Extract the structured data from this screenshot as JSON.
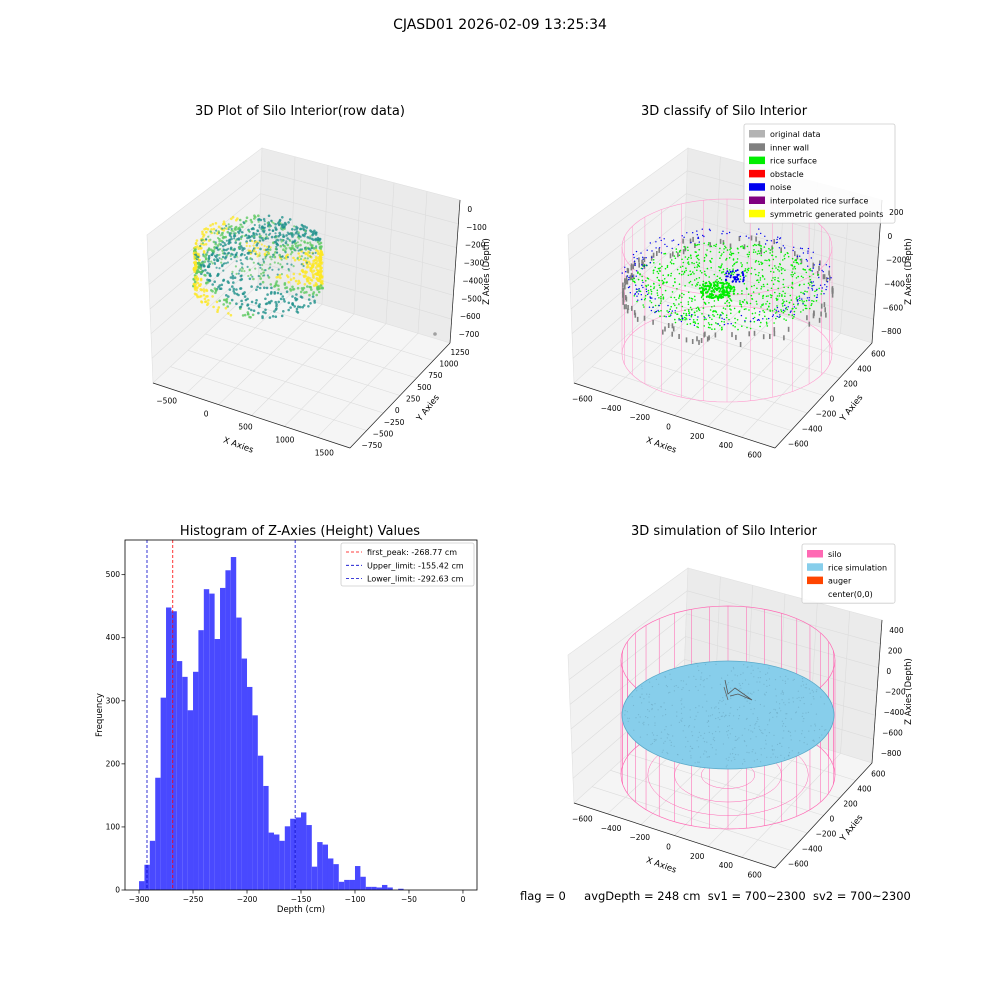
{
  "suptitle": "CJASD01 2026-02-09 13:25:34",
  "status_line": {
    "flag": "flag = 0",
    "avg_depth": "avgDepth = 248 cm",
    "sv1": "sv1 = 700~2300",
    "sv2": "sv2 = 700~2300"
  },
  "chart_data": [
    {
      "type": "scatter",
      "title": "3D Plot of Silo Interior(row data)",
      "xlabel": "X Axies",
      "ylabel": "Y Axies",
      "zlabel": "Z Axies (Depth)",
      "x_ticks": [
        "−500",
        "0",
        "500",
        "1000",
        "1500"
      ],
      "y_ticks": [
        "−750",
        "−500",
        "−250",
        "0",
        "250",
        "500",
        "750",
        "1000",
        "1250"
      ],
      "z_ticks": [
        "0",
        "−100",
        "−200",
        "−300",
        "−400",
        "−500",
        "−600",
        "−700"
      ],
      "colormap": [
        "#440154",
        "#21918c",
        "#5ec962",
        "#fde725"
      ]
    },
    {
      "type": "scatter",
      "title": "3D classify of Silo Interior",
      "xlabel": "X Axies",
      "ylabel": "Y Axies",
      "zlabel": "Z Axies (Depth)",
      "x_ticks": [
        "−600",
        "−400",
        "−200",
        "0",
        "200",
        "400",
        "600"
      ],
      "y_ticks": [
        "−600",
        "−400",
        "−200",
        "0",
        "200",
        "400",
        "600"
      ],
      "z_ticks": [
        "200",
        "0",
        "−200",
        "−400",
        "−600",
        "−800"
      ],
      "legend": [
        {
          "label": "original data",
          "color": "#b3b3b3"
        },
        {
          "label": "inner wall",
          "color": "#808080"
        },
        {
          "label": "rice surface",
          "color": "#00ee00"
        },
        {
          "label": "obstacle",
          "color": "#ff0000"
        },
        {
          "label": "noise",
          "color": "#0000ee"
        },
        {
          "label": "interpolated rice surface",
          "color": "#800080"
        },
        {
          "label": "symmetric generated points",
          "color": "#ffff00"
        }
      ],
      "legend_position": "top-right"
    },
    {
      "type": "bar",
      "title": "Histogram of Z-Axies (Height) Values",
      "xlabel": "Depth (cm)",
      "ylabel": "Frequency",
      "xlim": [
        -313,
        13
      ],
      "ylim": [
        0,
        555
      ],
      "x_ticks": [
        -300,
        -250,
        -200,
        -150,
        -100,
        -50,
        0
      ],
      "x_tick_labels": [
        "−300",
        "−250",
        "−200",
        "−150",
        "−100",
        "−50",
        "0"
      ],
      "y_ticks": [
        0,
        100,
        200,
        300,
        400,
        500
      ],
      "bar_color": "#4949ff",
      "bin_start": -300,
      "bin_width": 5,
      "values": [
        14,
        40,
        78,
        178,
        305,
        448,
        442,
        363,
        338,
        285,
        346,
        412,
        477,
        470,
        398,
        479,
        507,
        528,
        432,
        367,
        322,
        277,
        213,
        165,
        91,
        88,
        78,
        101,
        113,
        115,
        123,
        103,
        37,
        76,
        72,
        50,
        41,
        13,
        16,
        16,
        38,
        21,
        5,
        5,
        4,
        8,
        4,
        0,
        2
      ],
      "vlines": [
        {
          "label": "first_peak: -268.77 cm",
          "x": -268.77,
          "color": "#ff0000"
        },
        {
          "label": "Upper_limit: -155.42 cm",
          "x": -155.42,
          "color": "#0000cc"
        },
        {
          "label": "Lower_limit: -292.63 cm",
          "x": -292.63,
          "color": "#0000cc"
        }
      ],
      "legend_position": "top-right"
    },
    {
      "type": "scatter",
      "title": "3D simulation of Silo Interior",
      "xlabel": "X Axies",
      "ylabel": "Y Axies",
      "zlabel": "Z Axies (Depth)",
      "x_ticks": [
        "−600",
        "−400",
        "−200",
        "0",
        "200",
        "400",
        "600"
      ],
      "y_ticks": [
        "−600",
        "−400",
        "−200",
        "0",
        "200",
        "400",
        "600"
      ],
      "z_ticks": [
        "400",
        "200",
        "0",
        "−200",
        "−400",
        "−600",
        "−800"
      ],
      "legend": [
        {
          "label": "silo",
          "color": "#ff69b4"
        },
        {
          "label": "rice simulation",
          "color": "#87ceeb"
        },
        {
          "label": "auger",
          "color": "#ff4500"
        },
        {
          "label": "center(0,0)",
          "color": "#ffffff"
        }
      ],
      "legend_position": "top-right"
    }
  ]
}
